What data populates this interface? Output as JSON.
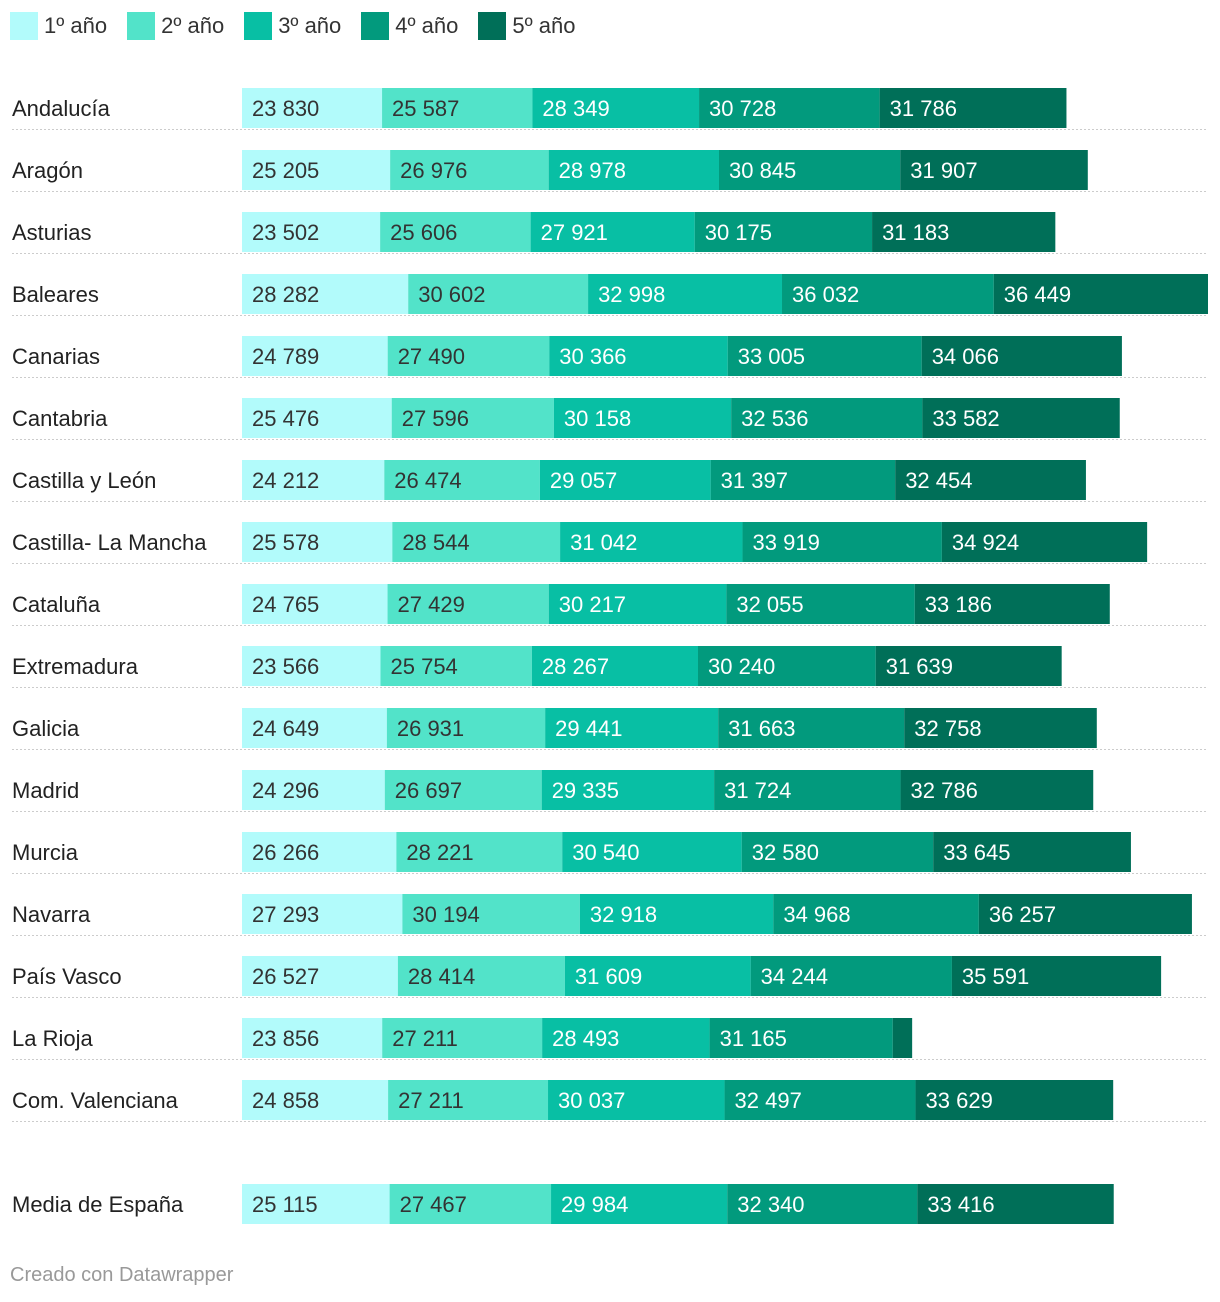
{
  "chart_data": {
    "type": "bar",
    "orientation": "horizontal",
    "stacked": true,
    "title": "",
    "xlabel": "",
    "ylabel": "",
    "grid": false,
    "series": [
      {
        "name": "1º año",
        "color": "#b2fbfb"
      },
      {
        "name": "2º año",
        "color": "#52e3c9"
      },
      {
        "name": "3º año",
        "color": "#08bfa4"
      },
      {
        "name": "4º año",
        "color": "#029a7d"
      },
      {
        "name": "5º año",
        "color": "#006f58"
      }
    ],
    "rows": [
      {
        "label": "Andalucía",
        "values": [
          23830,
          25587,
          28349,
          30728,
          31786
        ],
        "display": [
          "23 830",
          "25 587",
          "28 349",
          "30 728",
          "31 786"
        ]
      },
      {
        "label": "Aragón",
        "values": [
          25205,
          26976,
          28978,
          30845,
          31907
        ],
        "display": [
          "25 205",
          "26 976",
          "28 978",
          "30 845",
          "31 907"
        ]
      },
      {
        "label": "Asturias",
        "values": [
          23502,
          25606,
          27921,
          30175,
          31183
        ],
        "display": [
          "23 502",
          "25 606",
          "27 921",
          "30 175",
          "31 183"
        ]
      },
      {
        "label": "Baleares",
        "values": [
          28282,
          30602,
          32998,
          36032,
          36449
        ],
        "display": [
          "28 282",
          "30 602",
          "32 998",
          "36 032",
          "36 449"
        ]
      },
      {
        "label": "Canarias",
        "values": [
          24789,
          27490,
          30366,
          33005,
          34066
        ],
        "display": [
          "24 789",
          "27 490",
          "30 366",
          "33 005",
          "34 066"
        ]
      },
      {
        "label": "Cantabria",
        "values": [
          25476,
          27596,
          30158,
          32536,
          33582
        ],
        "display": [
          "25 476",
          "27 596",
          "30 158",
          "32 536",
          "33 582"
        ]
      },
      {
        "label": "Castilla y León",
        "values": [
          24212,
          26474,
          29057,
          31397,
          32454
        ],
        "display": [
          "24 212",
          "26 474",
          "29 057",
          "31 397",
          "32 454"
        ]
      },
      {
        "label": "Castilla- La Mancha",
        "values": [
          25578,
          28544,
          31042,
          33919,
          34924
        ],
        "display": [
          "25 578",
          "28 544",
          "31 042",
          "33 919",
          "34 924"
        ]
      },
      {
        "label": "Cataluña",
        "values": [
          24765,
          27429,
          30217,
          32055,
          33186
        ],
        "display": [
          "24 765",
          "27 429",
          "30 217",
          "32 055",
          "33 186"
        ]
      },
      {
        "label": "Extremadura",
        "values": [
          23566,
          25754,
          28267,
          30240,
          31639
        ],
        "display": [
          "23 566",
          "25 754",
          "28 267",
          "30 240",
          "31 639"
        ]
      },
      {
        "label": "Galicia",
        "values": [
          24649,
          26931,
          29441,
          31663,
          32758
        ],
        "display": [
          "24 649",
          "26 931",
          "29 441",
          "31 663",
          "32 758"
        ]
      },
      {
        "label": "Madrid",
        "values": [
          24296,
          26697,
          29335,
          31724,
          32786
        ],
        "display": [
          "24 296",
          "26 697",
          "29 335",
          "31 724",
          "32 786"
        ]
      },
      {
        "label": "Murcia",
        "values": [
          26266,
          28221,
          30540,
          32580,
          33645
        ],
        "display": [
          "26 266",
          "28 221",
          "30 540",
          "32 580",
          "33 645"
        ]
      },
      {
        "label": "Navarra",
        "values": [
          27293,
          30194,
          32918,
          34968,
          36257
        ],
        "display": [
          "27 293",
          "30 194",
          "32 918",
          "34 968",
          "36 257"
        ]
      },
      {
        "label": "País Vasco",
        "values": [
          26527,
          28414,
          31609,
          34244,
          35591
        ],
        "display": [
          "26 527",
          "28 414",
          "31 609",
          "34 244",
          "35 591"
        ]
      },
      {
        "label": "La Rioja",
        "values": [
          23856,
          27211,
          28493,
          31165,
          3300
        ],
        "display": [
          "23 856",
          "27 211",
          "28 493",
          "31 165",
          ""
        ]
      },
      {
        "label": "Com. Valenciana",
        "values": [
          24858,
          27211,
          30037,
          32497,
          33629
        ],
        "display": [
          "24 858",
          "27 211",
          "30 037",
          "32 497",
          "33 629"
        ]
      }
    ],
    "summary_row": {
      "label": "Media de España",
      "values": [
        25115,
        27467,
        29984,
        32340,
        33416
      ],
      "display": [
        "25 115",
        "27 467",
        "29 984",
        "32 340",
        "33 416"
      ]
    }
  },
  "footer": {
    "credit": "Creado con Datawrapper"
  }
}
